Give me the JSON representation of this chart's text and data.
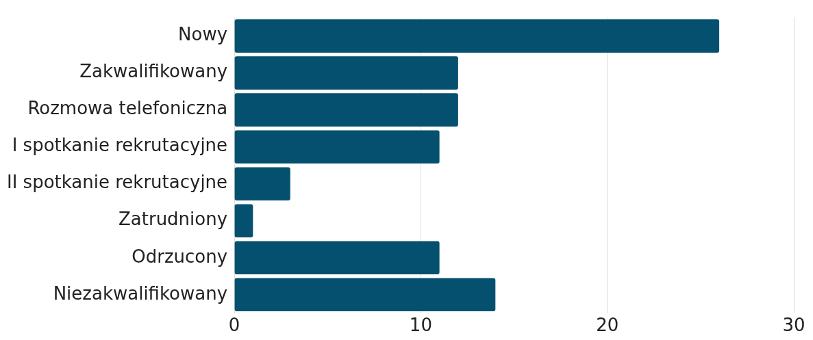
{
  "chart_data": {
    "type": "bar",
    "orientation": "horizontal",
    "categories": [
      "Nowy",
      "Zakwalifikowany",
      "Rozmowa telefoniczna",
      "I spotkanie rekrutacyjne",
      "II spotkanie rekrutacyjne",
      "Zatrudniony",
      "Odrzucony",
      "Niezakwalifikowany"
    ],
    "values": [
      26,
      12,
      12,
      11,
      3,
      1,
      11,
      14
    ],
    "color": "#05506e",
    "xlim": [
      0,
      30
    ],
    "xticks": [
      0,
      10,
      20,
      30
    ],
    "grid": "x",
    "legend": false
  }
}
